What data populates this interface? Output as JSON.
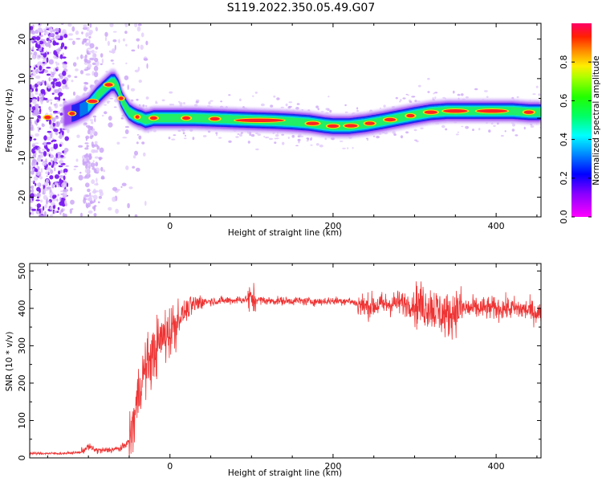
{
  "title": "S119.2022.350.05.49.G07",
  "chart_data": [
    {
      "type": "heatmap",
      "xlabel": "Height of straight line (km)",
      "ylabel": "Frequency (Hz)",
      "xlim": [
        -172,
        455
      ],
      "ylim": [
        -25,
        24
      ],
      "xticks": [
        0,
        200,
        400
      ],
      "yticks": [
        -20,
        -10,
        0,
        10,
        20
      ],
      "colorbar": {
        "label": "Normalized spectral amplitude",
        "range": [
          0,
          1
        ],
        "ticks": [
          "0.0",
          "0.2",
          "0.4",
          "0.6",
          "0.8"
        ],
        "colormap": "gist_rainbow_r"
      },
      "ridge": {
        "x": [
          -172,
          -150,
          -130,
          -115,
          -100,
          -90,
          -80,
          -72,
          -68,
          -63,
          -60,
          -55,
          -50,
          -45,
          -40,
          -35,
          -30,
          -25,
          -20,
          -10,
          0,
          30,
          60,
          100,
          130,
          150,
          170,
          180,
          190,
          200,
          220,
          240,
          260,
          280,
          300,
          320,
          340,
          360,
          380,
          400,
          420,
          440,
          455
        ],
        "y": [
          0,
          0.2,
          0.5,
          1.5,
          3,
          5.5,
          7.5,
          9,
          9,
          7.5,
          5,
          3,
          1.5,
          0.8,
          0.3,
          0,
          -0.5,
          -0.3,
          0,
          0,
          0,
          0,
          -0.2,
          -0.5,
          -0.7,
          -0.9,
          -1.2,
          -1.5,
          -1.8,
          -2,
          -2,
          -1.5,
          -0.8,
          0,
          0.8,
          1.5,
          1.8,
          1.8,
          1.8,
          1.8,
          1.8,
          1.5,
          1.5
        ]
      },
      "grid": false
    },
    {
      "type": "line",
      "xlabel": "Height of straight line (km)",
      "ylabel": "SNR (10 * v/v)",
      "xlim": [
        -172,
        455
      ],
      "ylim": [
        0,
        520
      ],
      "xticks": [
        0,
        200,
        400
      ],
      "yticks": [
        0,
        100,
        200,
        300,
        400,
        500
      ],
      "color": "#ee3333",
      "x": [
        -172,
        -150,
        -130,
        -110,
        -100,
        -90,
        -80,
        -60,
        -50,
        -45,
        -40,
        -35,
        -30,
        -25,
        -20,
        -15,
        -10,
        0,
        10,
        20,
        30,
        40,
        60,
        80,
        100,
        120,
        140,
        160,
        180,
        200,
        220,
        240,
        260,
        280,
        300,
        320,
        330,
        340,
        350,
        360,
        380,
        400,
        420,
        440,
        455
      ],
      "y": [
        12,
        12,
        12,
        15,
        30,
        20,
        20,
        25,
        45,
        90,
        160,
        210,
        240,
        260,
        280,
        300,
        320,
        340,
        370,
        395,
        410,
        418,
        420,
        422,
        425,
        420,
        420,
        420,
        418,
        420,
        420,
        405,
        410,
        415,
        410,
        405,
        390,
        380,
        395,
        400,
        400,
        400,
        400,
        395,
        385
      ]
    }
  ]
}
